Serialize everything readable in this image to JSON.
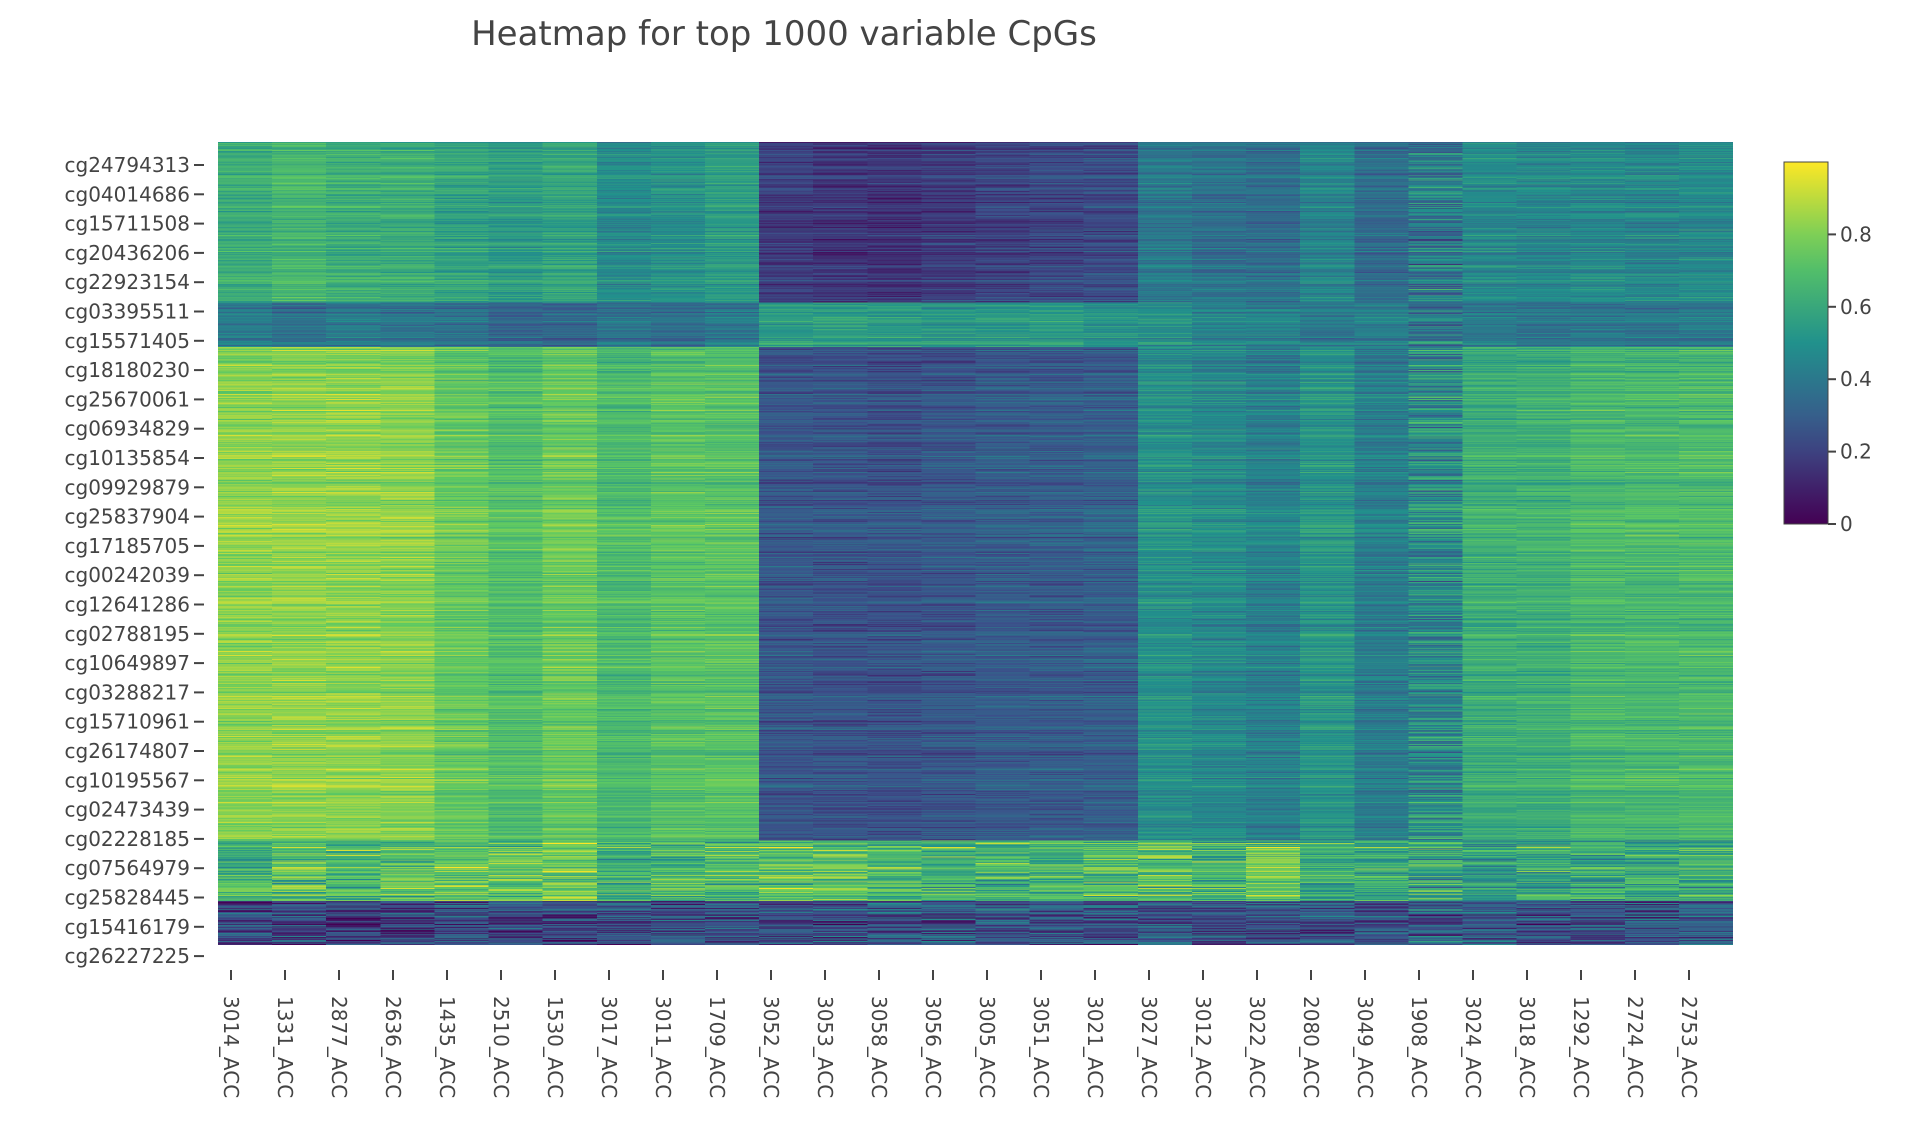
{
  "chart_data": {
    "type": "heatmap",
    "title": "Heatmap for top 1000 variable CpGs",
    "xlabel": "",
    "ylabel": "",
    "colorscale": "viridis",
    "colors": [
      "#440154",
      "#3b528b",
      "#21918c",
      "#5ec962",
      "#fde725"
    ],
    "zrange": [
      0,
      1
    ],
    "colorbar_ticks": [
      "0",
      "0.2",
      "0.4",
      "0.6",
      "0.8"
    ],
    "n_rows": 1000,
    "x": [
      "3014_ACC",
      "1331_ACC",
      "2877_ACC",
      "2636_ACC",
      "1435_ACC",
      "2510_ACC",
      "1530_ACC",
      "3017_ACC",
      "3011_ACC",
      "1709_ACC",
      "3052_ACC",
      "3053_ACC",
      "3058_ACC",
      "3056_ACC",
      "3005_ACC",
      "3051_ACC",
      "3021_ACC",
      "3027_ACC",
      "3012_ACC",
      "3022_ACC",
      "2080_ACC",
      "3049_ACC",
      "1908_ACC",
      "3024_ACC",
      "3018_ACC",
      "1292_ACC",
      "2724_ACC",
      "2753_ACC"
    ],
    "y_tick_labels": [
      "cg24794313",
      "cg04014686",
      "cg15711508",
      "cg20436206",
      "cg22923154",
      "cg03395511",
      "cg15571405",
      "cg18180230",
      "cg25670061",
      "cg06934829",
      "cg10135854",
      "cg09929879",
      "cg25837904",
      "cg17185705",
      "cg00242039",
      "cg12641286",
      "cg02788195",
      "cg10649897",
      "cg03288217",
      "cg15710961",
      "cg26174807",
      "cg10195567",
      "cg02473439",
      "cg02228185",
      "cg07564979",
      "cg25828445",
      "cg15416179",
      "cg26227225"
    ],
    "row_blocks": [
      {
        "rows": "0-200",
        "means": [
          0.62,
          0.66,
          0.63,
          0.62,
          0.58,
          0.55,
          0.58,
          0.48,
          0.5,
          0.55,
          0.18,
          0.16,
          0.15,
          0.18,
          0.2,
          0.22,
          0.23,
          0.4,
          0.37,
          0.36,
          0.45,
          0.35,
          0.4,
          0.47,
          0.46,
          0.47,
          0.46,
          0.47
        ]
      },
      {
        "rows": "200-255",
        "means": [
          0.42,
          0.36,
          0.4,
          0.38,
          0.36,
          0.32,
          0.33,
          0.38,
          0.36,
          0.4,
          0.55,
          0.55,
          0.55,
          0.52,
          0.54,
          0.55,
          0.5,
          0.5,
          0.45,
          0.44,
          0.4,
          0.42,
          0.38,
          0.4,
          0.38,
          0.39,
          0.38,
          0.4
        ]
      },
      {
        "rows": "255-870",
        "means": [
          0.82,
          0.83,
          0.83,
          0.82,
          0.75,
          0.7,
          0.76,
          0.68,
          0.72,
          0.72,
          0.27,
          0.26,
          0.25,
          0.27,
          0.29,
          0.29,
          0.3,
          0.5,
          0.47,
          0.43,
          0.52,
          0.42,
          0.48,
          0.62,
          0.63,
          0.67,
          0.67,
          0.68
        ]
      },
      {
        "rows": "870-945",
        "means": [
          0.64,
          0.7,
          0.67,
          0.72,
          0.75,
          0.72,
          0.78,
          0.65,
          0.68,
          0.7,
          0.72,
          0.75,
          0.68,
          0.65,
          0.67,
          0.68,
          0.7,
          0.7,
          0.67,
          0.72,
          0.62,
          0.62,
          0.58,
          0.55,
          0.6,
          0.6,
          0.62,
          0.62
        ]
      },
      {
        "rows": "945-1000",
        "means": [
          0.22,
          0.2,
          0.18,
          0.2,
          0.22,
          0.22,
          0.2,
          0.22,
          0.24,
          0.24,
          0.22,
          0.24,
          0.26,
          0.26,
          0.28,
          0.26,
          0.26,
          0.26,
          0.24,
          0.24,
          0.24,
          0.26,
          0.28,
          0.28,
          0.24,
          0.26,
          0.26,
          0.28
        ]
      }
    ]
  }
}
